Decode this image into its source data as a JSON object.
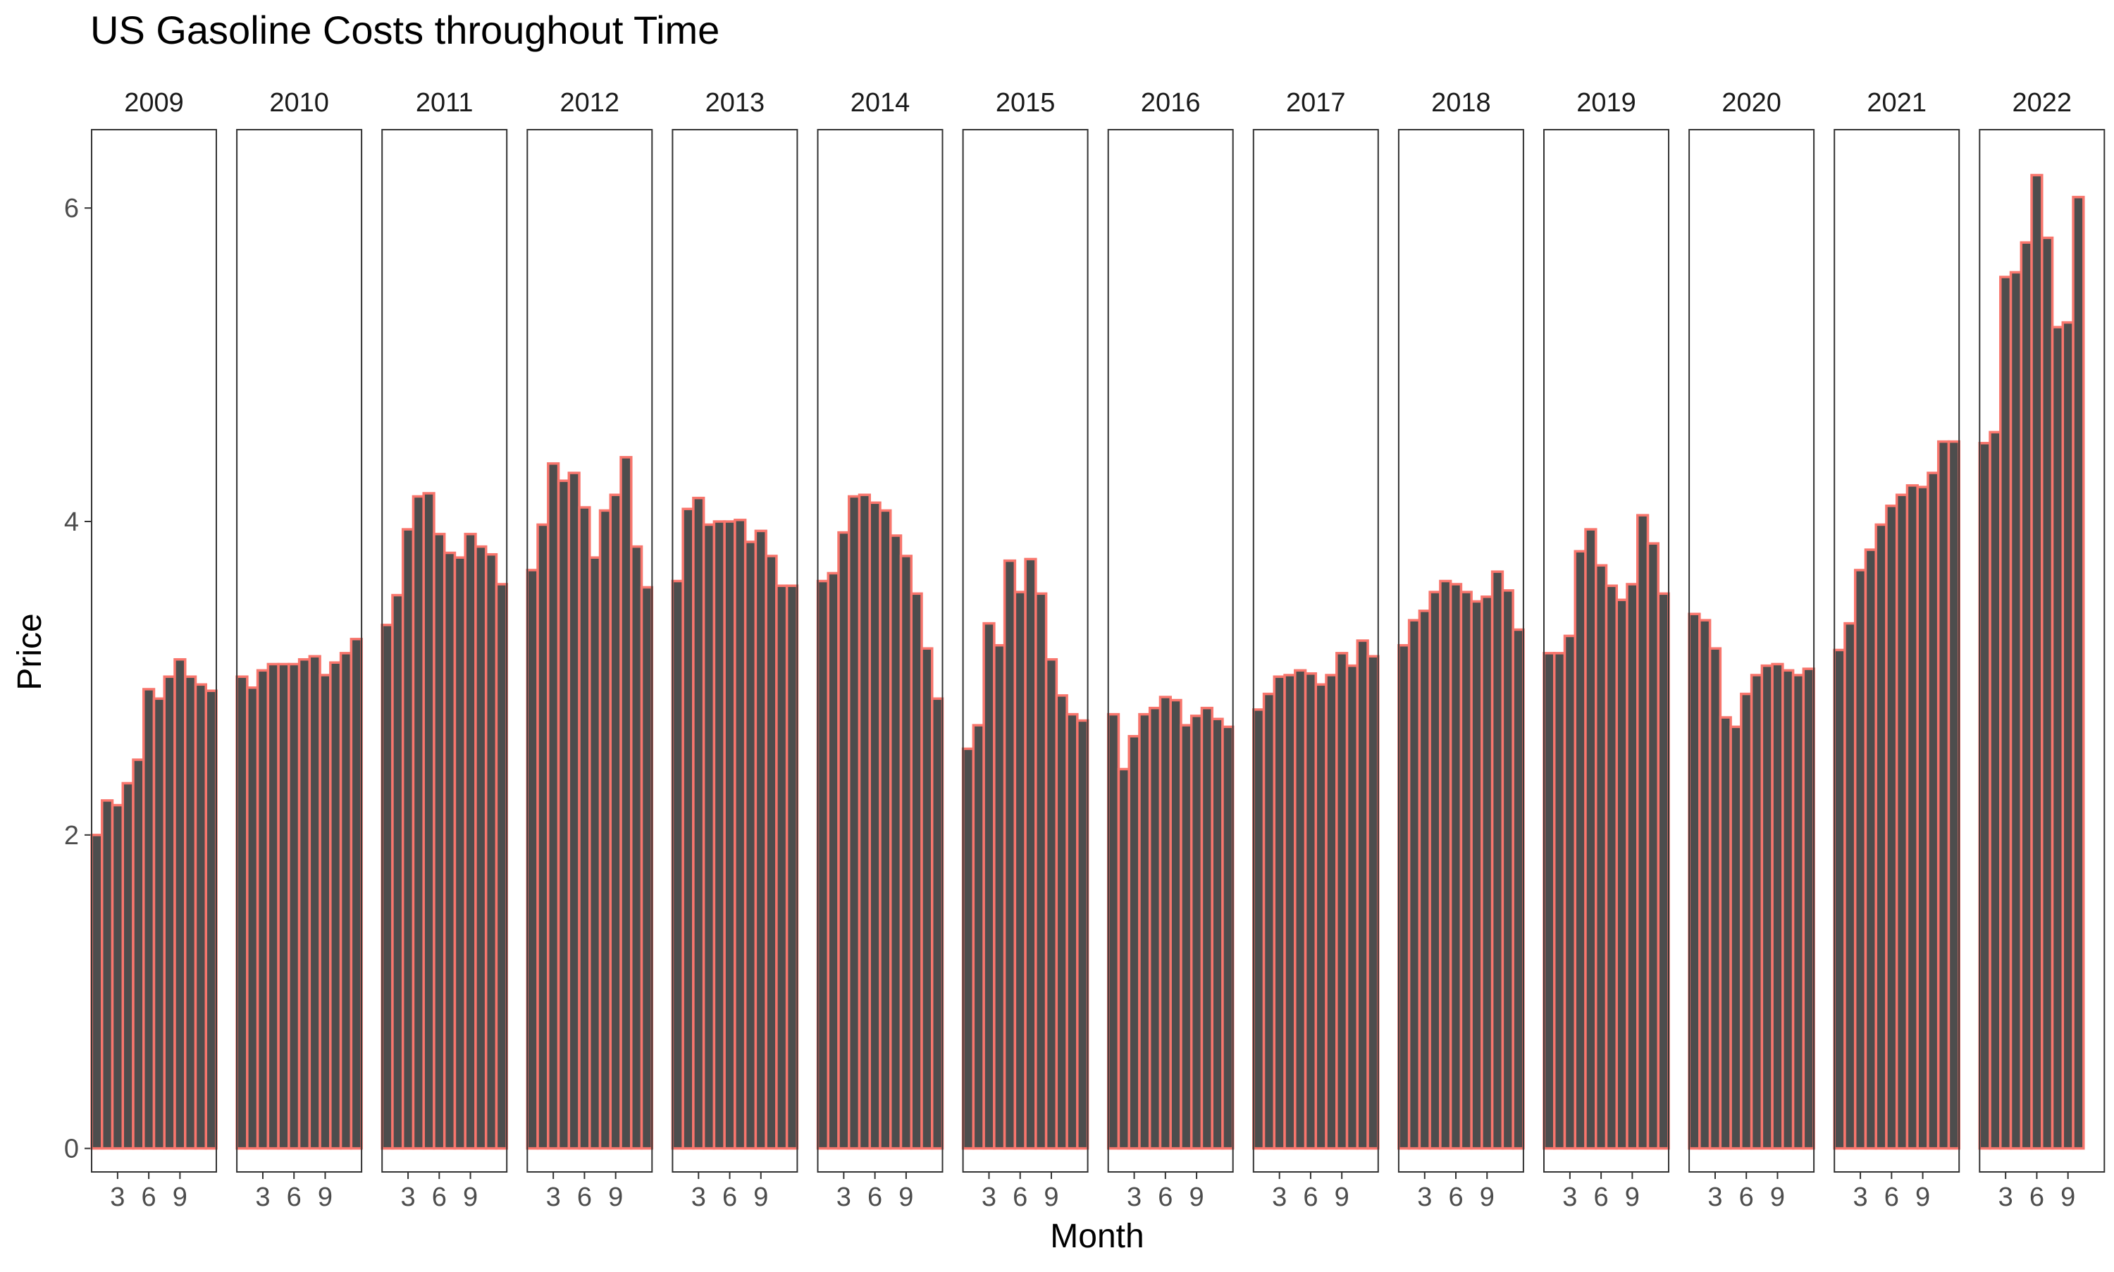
{
  "chart_data": {
    "type": "bar",
    "title": "US Gasoline Costs throughout Time",
    "xlabel": "Month",
    "ylabel": "Price",
    "ylim": [
      -0.15,
      6.5
    ],
    "y_ticks": [
      0,
      2,
      4,
      6
    ],
    "x_ticks": [
      3,
      6,
      9
    ],
    "x_range": [
      0.5,
      12.5
    ],
    "facet_by": "year",
    "bar_fill": "#4d4d4d",
    "bar_outline": "#f8766d",
    "panels": [
      {
        "year": "2009",
        "values": [
          2.0,
          2.22,
          2.19,
          2.33,
          2.48,
          2.93,
          2.87,
          3.01,
          3.12,
          3.01,
          2.96,
          2.92
        ]
      },
      {
        "year": "2010",
        "values": [
          3.01,
          2.94,
          3.05,
          3.09,
          3.09,
          3.09,
          3.12,
          3.14,
          3.02,
          3.1,
          3.16,
          3.25
        ]
      },
      {
        "year": "2011",
        "values": [
          3.34,
          3.53,
          3.95,
          4.16,
          4.18,
          3.92,
          3.8,
          3.77,
          3.92,
          3.84,
          3.79,
          3.6
        ]
      },
      {
        "year": "2012",
        "values": [
          3.69,
          3.98,
          4.37,
          4.26,
          4.31,
          4.09,
          3.77,
          4.07,
          4.17,
          4.41,
          3.84,
          3.58
        ]
      },
      {
        "year": "2013",
        "values": [
          3.62,
          4.08,
          4.15,
          3.98,
          4.0,
          4.0,
          4.01,
          3.87,
          3.94,
          3.78,
          3.59,
          3.59
        ]
      },
      {
        "year": "2014",
        "values": [
          3.62,
          3.67,
          3.93,
          4.16,
          4.17,
          4.12,
          4.07,
          3.91,
          3.78,
          3.54,
          3.19,
          2.87
        ]
      },
      {
        "year": "2015",
        "values": [
          2.55,
          2.7,
          3.35,
          3.21,
          3.75,
          3.55,
          3.76,
          3.54,
          3.12,
          2.89,
          2.77,
          2.73
        ]
      },
      {
        "year": "2016",
        "values": [
          2.77,
          2.42,
          2.63,
          2.77,
          2.81,
          2.88,
          2.86,
          2.7,
          2.76,
          2.81,
          2.74,
          2.69
        ]
      },
      {
        "year": "2017",
        "values": [
          2.8,
          2.9,
          3.01,
          3.02,
          3.05,
          3.03,
          2.96,
          3.02,
          3.16,
          3.08,
          3.24,
          3.14
        ]
      },
      {
        "year": "2018",
        "values": [
          3.21,
          3.37,
          3.43,
          3.55,
          3.62,
          3.6,
          3.55,
          3.49,
          3.52,
          3.68,
          3.56,
          3.31
        ]
      },
      {
        "year": "2019",
        "values": [
          3.16,
          3.16,
          3.27,
          3.81,
          3.95,
          3.72,
          3.59,
          3.5,
          3.6,
          4.04,
          3.86,
          3.54
        ]
      },
      {
        "year": "2020",
        "values": [
          3.41,
          3.37,
          3.19,
          2.75,
          2.69,
          2.9,
          3.02,
          3.08,
          3.09,
          3.05,
          3.02,
          3.06
        ]
      },
      {
        "year": "2021",
        "values": [
          3.18,
          3.35,
          3.69,
          3.82,
          3.98,
          4.1,
          4.17,
          4.23,
          4.22,
          4.31,
          4.51,
          4.51
        ]
      },
      {
        "year": "2022",
        "values": [
          4.5,
          4.57,
          5.56,
          5.59,
          5.78,
          6.21,
          5.81,
          5.24,
          5.27,
          6.07,
          null,
          null
        ]
      }
    ]
  }
}
